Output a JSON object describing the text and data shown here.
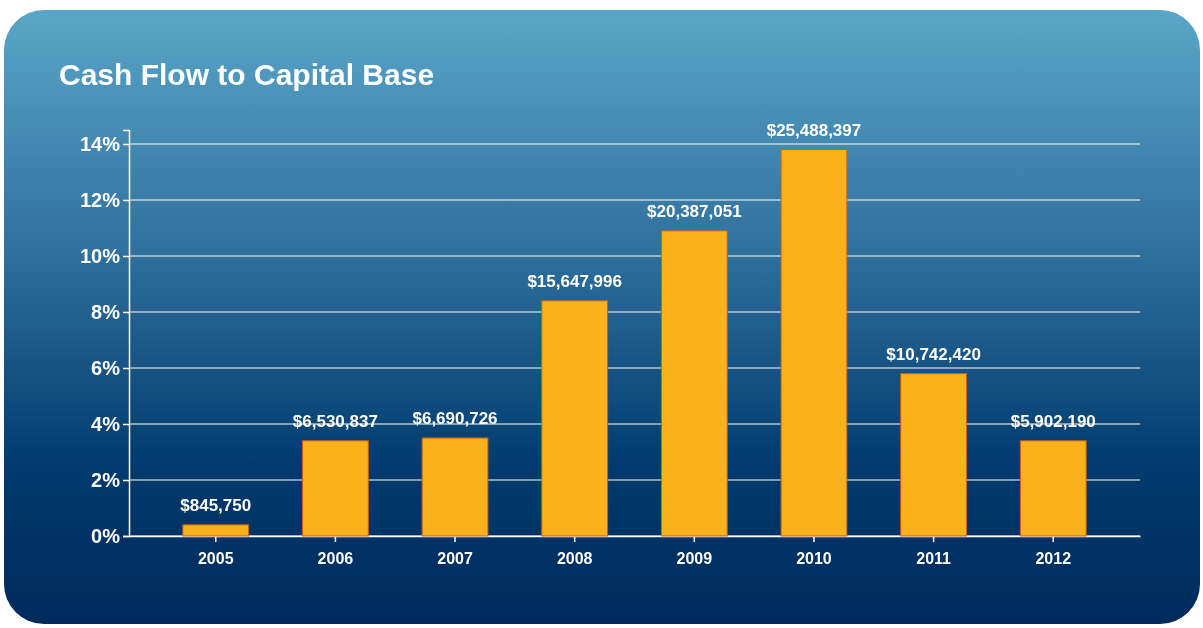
{
  "chart_data": {
    "type": "bar",
    "title": "Cash Flow to Capital Base",
    "categories": [
      "2005",
      "2006",
      "2007",
      "2008",
      "2009",
      "2010",
      "2011",
      "2012"
    ],
    "values": [
      0.4,
      3.4,
      3.5,
      8.4,
      10.9,
      13.8,
      5.8,
      3.4
    ],
    "annotations": [
      {
        "text": "$845,750",
        "x": "2005",
        "y": 0.4
      },
      {
        "text": "$6,530,837",
        "x": "2006",
        "y": 3.4
      },
      {
        "text": "$6,690,726",
        "x": "2007",
        "y": 3.5
      },
      {
        "text": "$15,647,996",
        "x": "2008",
        "y": 8.4
      },
      {
        "text": "$20,387,051",
        "x": "2009",
        "y": 10.9
      },
      {
        "text": "$25,488,397",
        "x": "2010",
        "y": 13.8
      },
      {
        "text": "$10,742,420",
        "x": "2011",
        "y": 5.8
      },
      {
        "text": "$5,902,190",
        "x": "2012",
        "y": 3.4
      }
    ],
    "color": "#f9b21c",
    "ylim": [
      0,
      14.5
    ],
    "yticks": [
      {
        "value": 0,
        "label": "0%"
      },
      {
        "value": 2,
        "label": "2%"
      },
      {
        "value": 4,
        "label": "4%"
      },
      {
        "value": 6,
        "label": "6%"
      },
      {
        "value": 8,
        "label": "8%"
      },
      {
        "value": 10,
        "label": "10%"
      },
      {
        "value": 12,
        "label": "12%"
      },
      {
        "value": 14,
        "label": "14%"
      }
    ],
    "grid": "y"
  }
}
